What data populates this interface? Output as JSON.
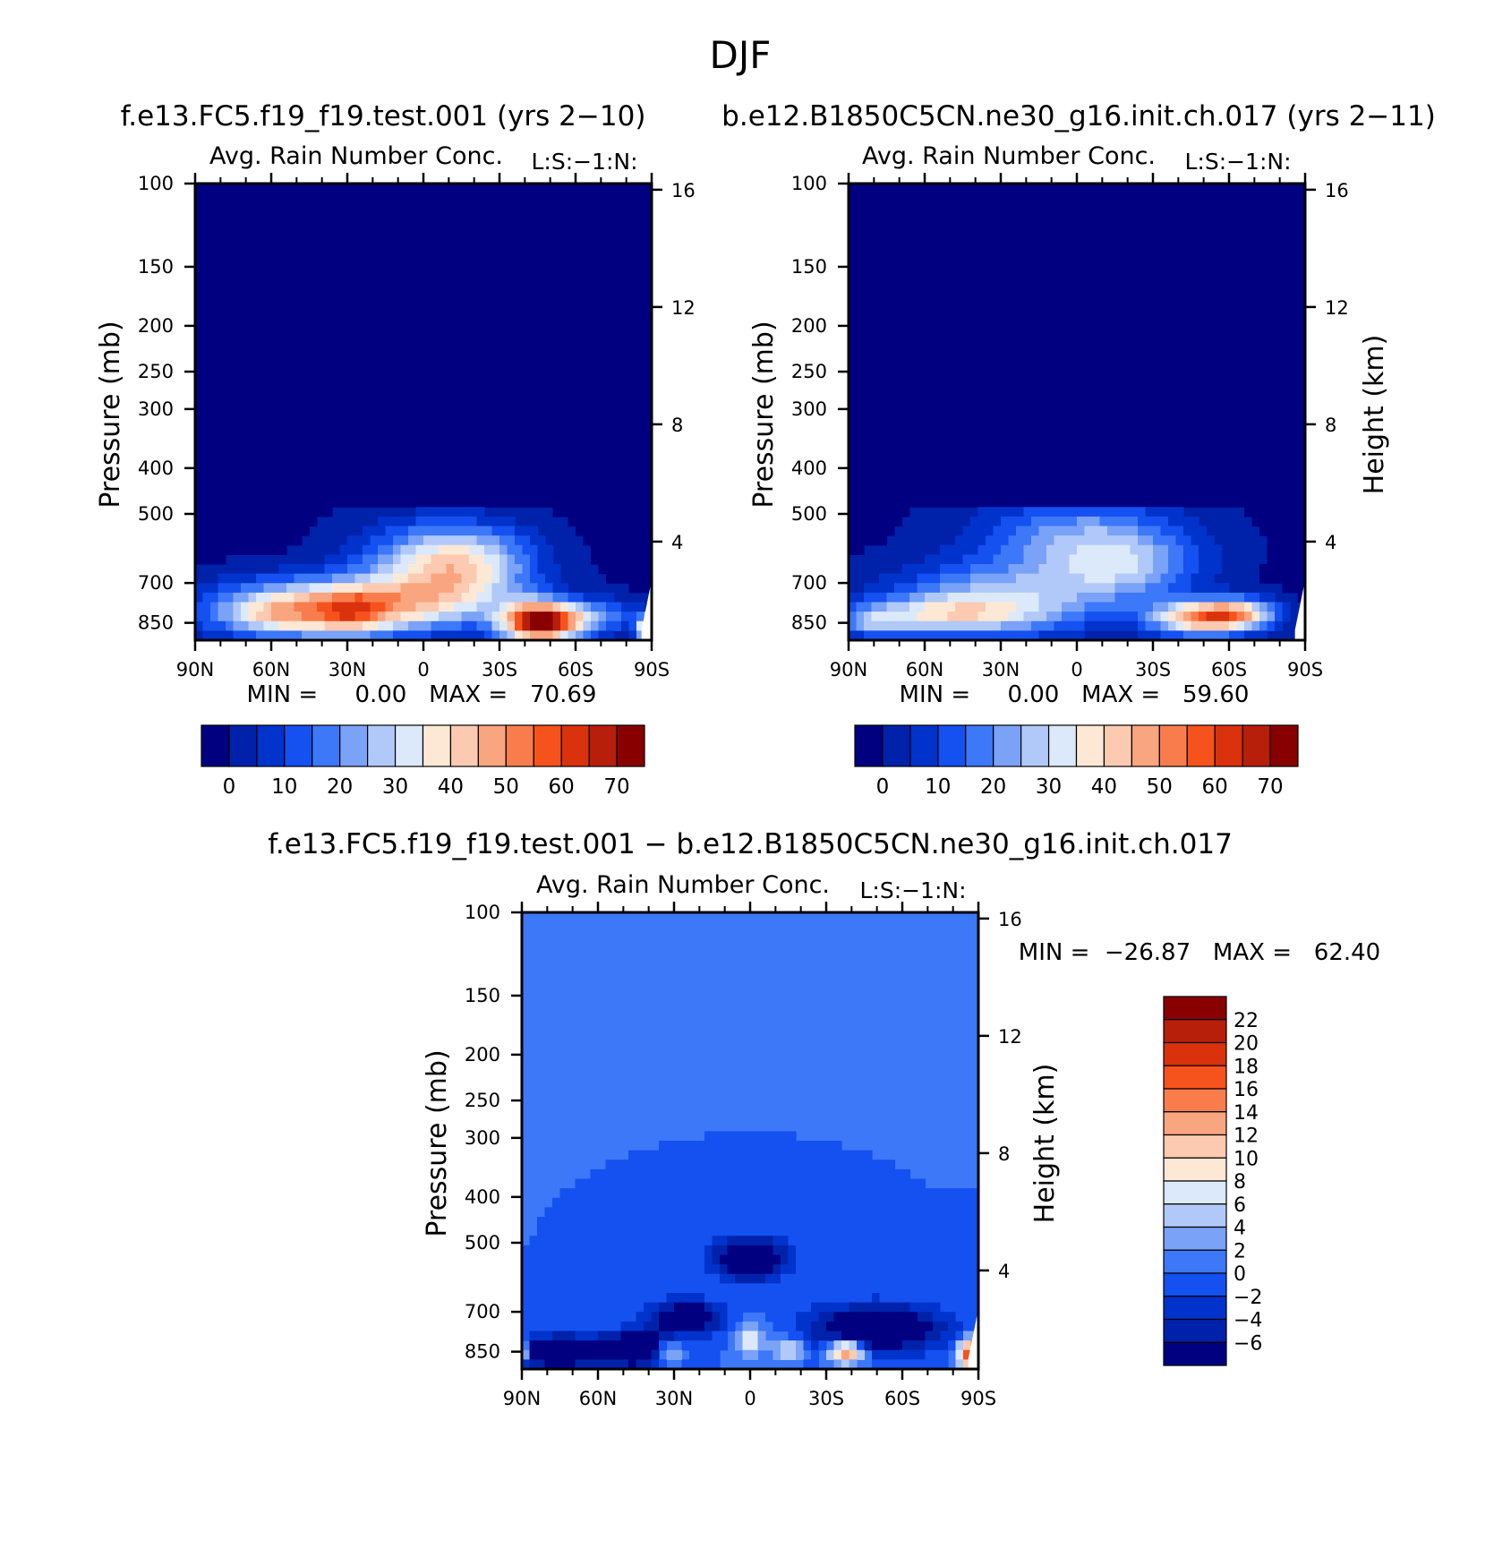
{
  "figure": {
    "title": "DJF"
  },
  "palettes": {
    "abs": [
      "#000080",
      "#0022aa",
      "#0033cc",
      "#1550f0",
      "#3c78f7",
      "#7aa2f7",
      "#b1c9f9",
      "#dbe9fb",
      "#fde8d5",
      "#fbcab0",
      "#f9a57f",
      "#f97d4c",
      "#f6521c",
      "#da320d",
      "#b71f0a",
      "#890000"
    ],
    "diff": [
      "#000080",
      "#0022aa",
      "#0033cc",
      "#1550f0",
      "#3c78f7",
      "#7aa2f7",
      "#b1c9f9",
      "#dbe9fb",
      "#fde8d5",
      "#fbcab0",
      "#f9a57f",
      "#f97d4c",
      "#f6521c",
      "#da320d",
      "#b71f0a",
      "#890000"
    ]
  },
  "chart_data": [
    {
      "type": "heatmap",
      "case_title": "f.e13.FC5.f19_f19.test.001 (yrs 2−10)",
      "title": "Avg. Rain Number Conc.",
      "corner_label": "L:S:−1:N:",
      "ylabel": "Pressure (mb)",
      "y2label": "",
      "stats": "MIN =     0.00   MAX =   70.69",
      "min": 0.0,
      "max": 70.69,
      "colorbar_ticks": [
        "0",
        "10",
        "20",
        "30",
        "40",
        "50",
        "60",
        "70"
      ],
      "blobs": [
        {
          "lat": 45,
          "p": 800,
          "dlat": 28,
          "dlogp": 0.1,
          "v": 30
        },
        {
          "lat": 20,
          "p": 780,
          "dlat": 35,
          "dlogp": 0.09,
          "v": 26
        },
        {
          "lat": 0,
          "p": 650,
          "dlat": 20,
          "dlogp": 0.15,
          "v": 24
        },
        {
          "lat": -20,
          "p": 640,
          "dlat": 18,
          "dlogp": 0.13,
          "v": 26
        },
        {
          "lat": 28,
          "p": 820,
          "dlat": 8,
          "dlogp": 0.07,
          "v": 14
        },
        {
          "lat": 60,
          "p": 830,
          "dlat": 12,
          "dlogp": 0.05,
          "v": 10
        },
        {
          "lat": -45,
          "p": 850,
          "dlat": 10,
          "dlogp": 0.07,
          "v": 62
        },
        {
          "lat": -55,
          "p": 840,
          "dlat": 12,
          "dlogp": 0.06,
          "v": 18
        },
        {
          "lat": -70,
          "p": 820,
          "dlat": 12,
          "dlogp": 0.06,
          "v": 14
        },
        {
          "lat": -88,
          "p": 870,
          "dlat": 3,
          "dlogp": 0.04,
          "v": 44
        }
      ]
    },
    {
      "type": "heatmap",
      "case_title": "b.e12.B1850C5CN.ne30_g16.init.ch.017 (yrs 2−11)",
      "title": "Avg. Rain Number Conc.",
      "corner_label": "L:S:−1:N:",
      "ylabel": "Pressure (mb)",
      "y2label": "Height (km)",
      "stats": "MIN =     0.00   MAX =   59.60",
      "min": 0.0,
      "max": 59.6,
      "colorbar_ticks": [
        "0",
        "10",
        "20",
        "30",
        "40",
        "50",
        "60",
        "70"
      ],
      "blobs": [
        {
          "lat": 30,
          "p": 760,
          "dlat": 30,
          "dlogp": 0.12,
          "v": 28
        },
        {
          "lat": 55,
          "p": 820,
          "dlat": 25,
          "dlogp": 0.06,
          "v": 24
        },
        {
          "lat": 0,
          "p": 560,
          "dlat": 28,
          "dlogp": 0.14,
          "v": 22
        },
        {
          "lat": -20,
          "p": 650,
          "dlat": 20,
          "dlogp": 0.12,
          "v": 20
        },
        {
          "lat": 80,
          "p": 850,
          "dlat": 8,
          "dlogp": 0.05,
          "v": 16
        },
        {
          "lat": -50,
          "p": 830,
          "dlat": 14,
          "dlogp": 0.06,
          "v": 50
        },
        {
          "lat": -65,
          "p": 810,
          "dlat": 10,
          "dlogp": 0.05,
          "v": 26
        }
      ]
    },
    {
      "type": "heatmap",
      "case_title": "f.e13.FC5.f19_f19.test.001 − b.e12.B1850C5CN.ne30_g16.init.ch.017",
      "title": "Avg. Rain Number Conc.",
      "corner_label": "L:S:−1:N:",
      "ylabel": "Pressure (mb)",
      "y2label": "Height (km)",
      "stats": "MIN =  −26.87   MAX =   62.40",
      "min": -26.87,
      "max": 62.4,
      "colorbar_ticks": [
        "22",
        "20",
        "18",
        "16",
        "14",
        "12",
        "10",
        "8",
        "6",
        "4",
        "2",
        "0",
        "−2",
        "−4",
        "−6"
      ],
      "blobs": [
        {
          "lat": 75,
          "p": 850,
          "dlat": 12,
          "dlogp": 0.05,
          "v": -14
        },
        {
          "lat": 45,
          "p": 840,
          "dlat": 10,
          "dlogp": 0.06,
          "v": -12
        },
        {
          "lat": 25,
          "p": 720,
          "dlat": 10,
          "dlogp": 0.06,
          "v": -10
        },
        {
          "lat": 0,
          "p": 540,
          "dlat": 10,
          "dlogp": 0.07,
          "v": -12
        },
        {
          "lat": -50,
          "p": 760,
          "dlat": 18,
          "dlogp": 0.08,
          "v": -12
        },
        {
          "lat": 32,
          "p": 850,
          "dlat": 4,
          "dlogp": 0.04,
          "v": 9
        },
        {
          "lat": 0,
          "p": 800,
          "dlat": 4,
          "dlogp": 0.06,
          "v": 8
        },
        {
          "lat": -15,
          "p": 840,
          "dlat": 4,
          "dlogp": 0.04,
          "v": 8
        },
        {
          "lat": -38,
          "p": 850,
          "dlat": 5,
          "dlogp": 0.04,
          "v": 16
        },
        {
          "lat": -88,
          "p": 860,
          "dlat": 4,
          "dlogp": 0.05,
          "v": 22
        },
        {
          "lat": 89,
          "p": 850,
          "dlat": 1.5,
          "dlogp": 0.03,
          "v": 12
        }
      ]
    }
  ],
  "axes": {
    "x_ticks": [
      "90N",
      "60N",
      "30N",
      "0",
      "30S",
      "60S",
      "90S"
    ],
    "x_values": [
      90,
      60,
      30,
      0,
      -30,
      -60,
      -90
    ],
    "p_ticks": [
      "100",
      "150",
      "200",
      "250",
      "300",
      "400",
      "500",
      "700",
      "850"
    ],
    "p_values": [
      100,
      150,
      200,
      250,
      300,
      400,
      500,
      700,
      850
    ],
    "pbot": 925,
    "ptop": 100,
    "h_ticks": [
      "4",
      "8",
      "12",
      "16"
    ],
    "h_values": [
      4,
      8,
      12,
      16
    ]
  }
}
